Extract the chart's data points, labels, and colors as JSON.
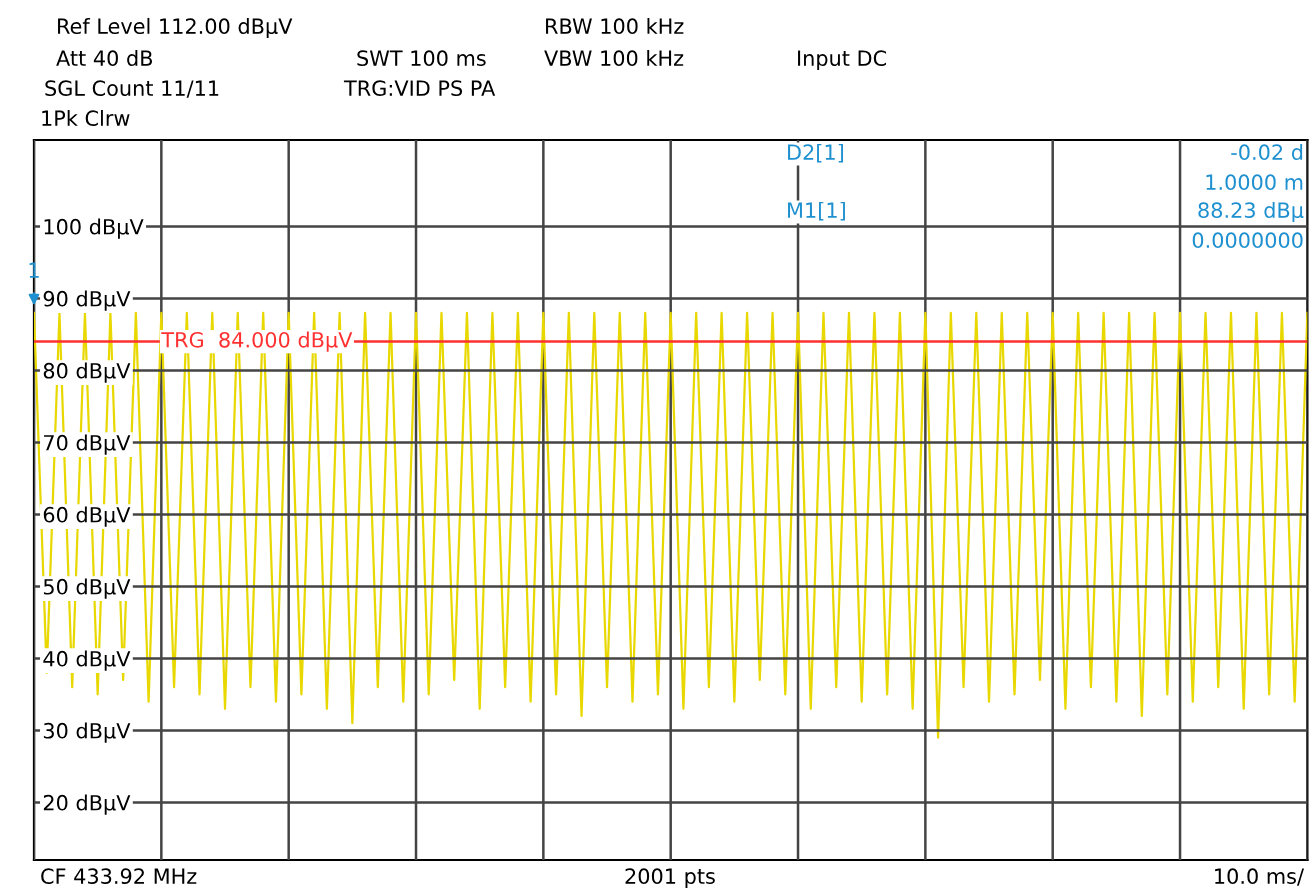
{
  "chart_data": {
    "type": "line",
    "ylim": [
      12,
      112
    ],
    "yticks": [
      {
        "value": 20,
        "label": "20 dBµV"
      },
      {
        "value": 30,
        "label": "30 dBµV"
      },
      {
        "value": 40,
        "label": "40 dBµV"
      },
      {
        "value": 50,
        "label": "50 dBµV"
      },
      {
        "value": 60,
        "label": "60 dBµV"
      },
      {
        "value": 70,
        "label": "70 dBµV"
      },
      {
        "value": 80,
        "label": "80 dBµV"
      },
      {
        "value": 90,
        "label": "90 dBµV"
      },
      {
        "value": 100,
        "label": "100 dBµV"
      }
    ],
    "categories": [
      null,
      null,
      null,
      null,
      null,
      null,
      null,
      null,
      null,
      null,
      null,
      null,
      null,
      null,
      null,
      null,
      null,
      null,
      null,
      null,
      null,
      null,
      null,
      null,
      null,
      null,
      null,
      null,
      null,
      null,
      null,
      null,
      null,
      null,
      null,
      null,
      null,
      null,
      null,
      null,
      null,
      null,
      null,
      null,
      null,
      null,
      null,
      null,
      null,
      null,
      null,
      null,
      null,
      null,
      null,
      null,
      null,
      null,
      null,
      null,
      null,
      null,
      null,
      null,
      null,
      null,
      null,
      null,
      null,
      null,
      null,
      null,
      null,
      null,
      null,
      null,
      null,
      null,
      null,
      null,
      null,
      null,
      null,
      null,
      null,
      null,
      null,
      null,
      null,
      null,
      null,
      null,
      null,
      null,
      null,
      null,
      null,
      null,
      null,
      null,
      null
    ],
    "tick_labels": "y",
    "grid": true,
    "series": [
      {
        "color": "#e8d800",
        "values": [
          88,
          38,
          88,
          36,
          88,
          35,
          88,
          37,
          88,
          34,
          88,
          36,
          88,
          35,
          88,
          33,
          88,
          36,
          88,
          34,
          88,
          35,
          88,
          33,
          88,
          31,
          88,
          36,
          88,
          34,
          88,
          35,
          88,
          37,
          88,
          33,
          88,
          36,
          88,
          34,
          88,
          35,
          88,
          32,
          88,
          36,
          88,
          34,
          88,
          35,
          88,
          33,
          88,
          36,
          88,
          34,
          88,
          37,
          88,
          35,
          88,
          33,
          88,
          36,
          88,
          34,
          88,
          35,
          88,
          33,
          88,
          29,
          88,
          36,
          88,
          34,
          88,
          35,
          88,
          37,
          88,
          33,
          88,
          36,
          88,
          34,
          88,
          32,
          88,
          35,
          88,
          34,
          88,
          36,
          88,
          33,
          88,
          35,
          88,
          34,
          88
        ]
      }
    ],
    "ref_lines": [
      {
        "axis": "y",
        "value": 84,
        "label": "TRG  84.000 dBµV",
        "color": "#ff3030"
      }
    ],
    "annotations": [
      "Ref Level 112.00 dBµV",
      "Att 40 dB",
      "SWT 100 ms",
      "RBW 100 kHz",
      "VBW 100 kHz",
      "Input DC",
      "SGL Count 11/11",
      "TRG:VID PS PA",
      "1Pk Clrw",
      "D2[1]",
      "M1[1]",
      "-0.02 d",
      "1.0000 m",
      "88.23 dBµ",
      "0.0000000",
      "CF 433.92 MHz",
      "2001 pts",
      "10.0 ms/",
      {
        "text": "1",
        "y": 88.23
      }
    ]
  }
}
